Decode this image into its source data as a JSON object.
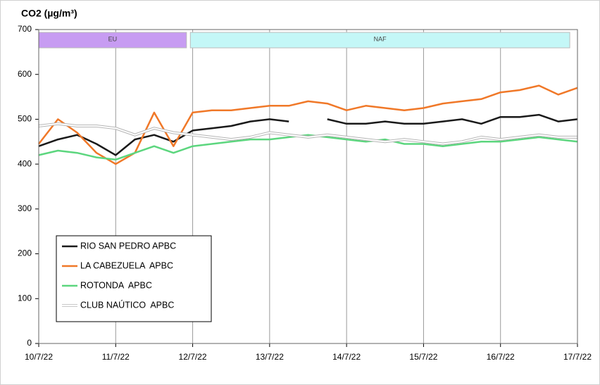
{
  "chart_data": {
    "type": "line",
    "title": "CO2 (µg/m³)",
    "xlim": [
      0,
      7
    ],
    "xticks": [
      {
        "value": 0,
        "label": "10/7/22"
      },
      {
        "value": 1,
        "label": "11/7/22"
      },
      {
        "value": 2,
        "label": "12/7/22"
      },
      {
        "value": 3,
        "label": "13/7/22"
      },
      {
        "value": 4,
        "label": "14/7/22"
      },
      {
        "value": 5,
        "label": "15/7/22"
      },
      {
        "value": 6,
        "label": "16/7/22"
      },
      {
        "value": 7,
        "label": "17/7/22"
      }
    ],
    "ylim": [
      0,
      700
    ],
    "yticks": [
      0,
      100,
      200,
      300,
      400,
      500,
      600,
      700
    ],
    "grid": "x",
    "legend": "lower left",
    "periods": [
      {
        "label": "EU",
        "start": 0,
        "end": 1.92,
        "color": "#c79cf2"
      },
      {
        "label": "NAF",
        "start": 1.97,
        "end": 6.9,
        "color": "#c4f7f7"
      }
    ],
    "x": [
      0,
      0.25,
      0.5,
      0.75,
      1,
      1.25,
      1.5,
      1.75,
      2,
      2.25,
      2.5,
      2.75,
      3,
      3.25,
      3.5,
      3.75,
      4,
      4.25,
      4.5,
      4.75,
      5,
      5.25,
      5.5,
      5.75,
      6,
      6.25,
      6.5,
      6.75,
      7
    ],
    "series": [
      {
        "name": "RIO SAN PEDRO APBC",
        "color": "#1a1a1a",
        "values": [
          440,
          455,
          465,
          445,
          420,
          455,
          465,
          450,
          475,
          480,
          485,
          495,
          500,
          495,
          null,
          500,
          490,
          490,
          495,
          490,
          490,
          495,
          500,
          490,
          505,
          505,
          510,
          495,
          500
        ]
      },
      {
        "name": "LA CABEZUELA  APBC",
        "color": "#f07828",
        "values": [
          445,
          500,
          470,
          425,
          400,
          425,
          515,
          440,
          515,
          520,
          520,
          525,
          530,
          530,
          540,
          535,
          520,
          530,
          525,
          520,
          525,
          535,
          540,
          545,
          560,
          565,
          575,
          555,
          570
        ]
      },
      {
        "name": "ROTONDA  APBC",
        "color": "#5cd67e",
        "values": [
          420,
          430,
          425,
          415,
          410,
          425,
          440,
          425,
          440,
          445,
          450,
          455,
          455,
          460,
          465,
          460,
          455,
          450,
          455,
          445,
          445,
          440,
          445,
          450,
          450,
          455,
          460,
          455,
          450
        ]
      },
      {
        "name": "CLUB NAÚTICO  APBC",
        "color": "#ffffff",
        "values": [
          485,
          490,
          485,
          485,
          480,
          465,
          480,
          470,
          465,
          460,
          455,
          460,
          470,
          465,
          460,
          465,
          460,
          455,
          450,
          455,
          450,
          445,
          450,
          460,
          455,
          460,
          465,
          460,
          460
        ]
      }
    ]
  }
}
